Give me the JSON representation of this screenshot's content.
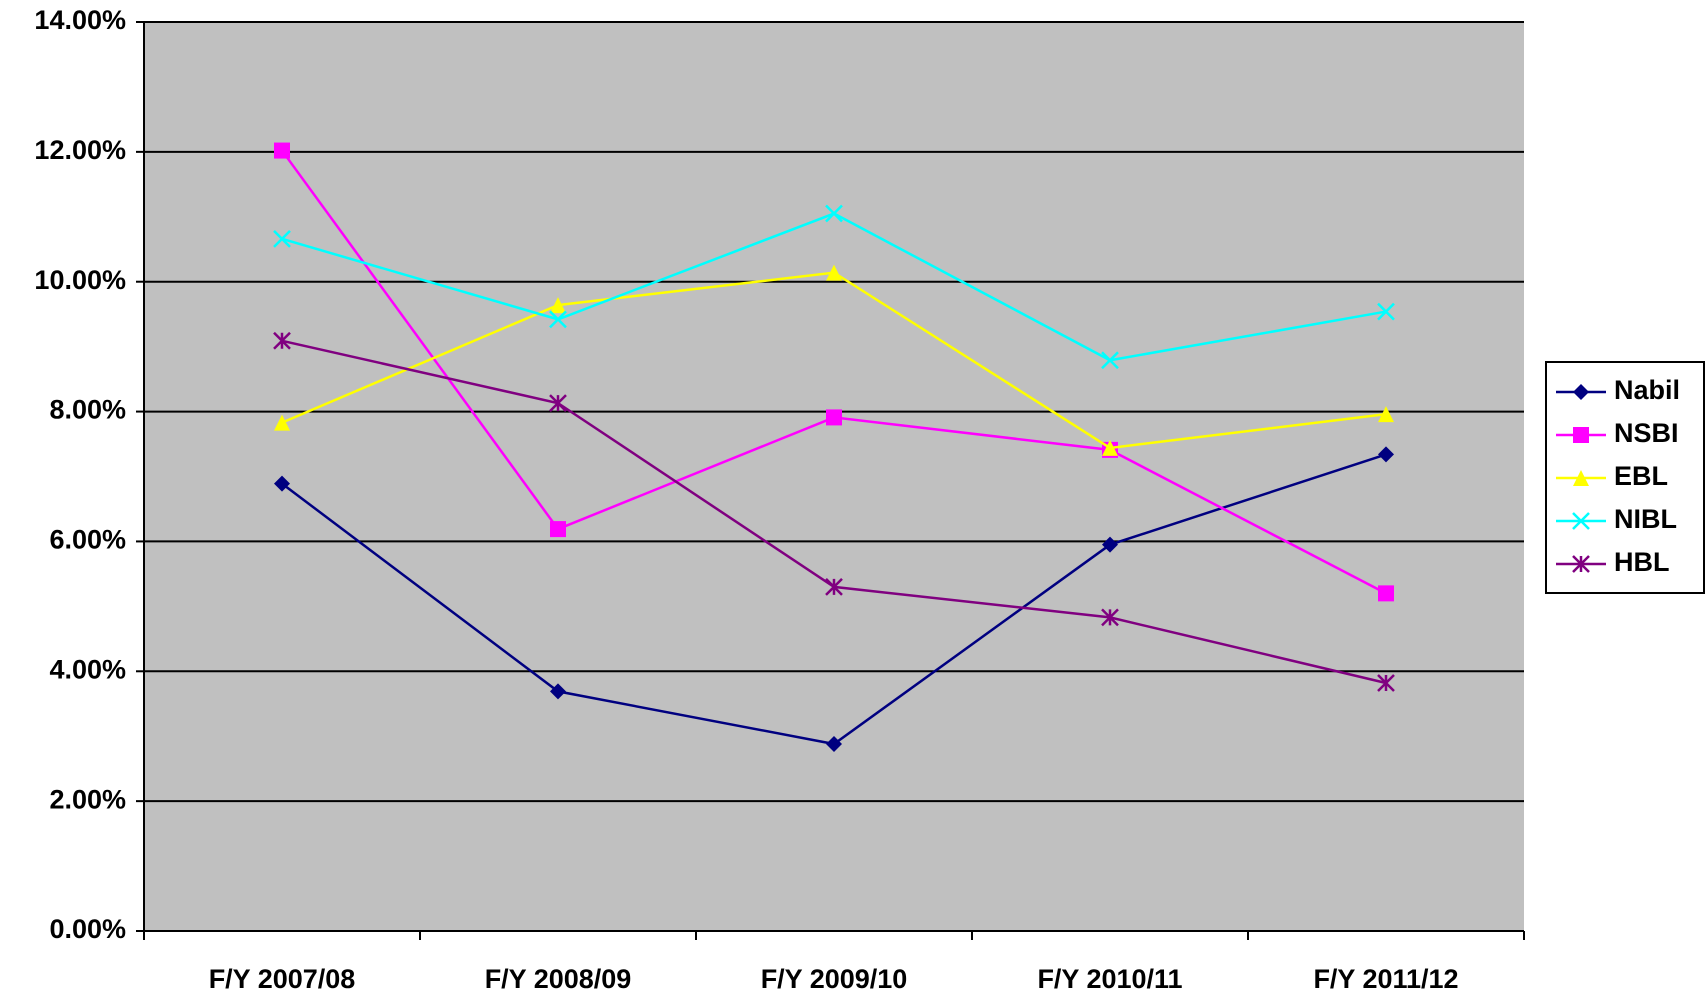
{
  "chart_data": {
    "type": "line",
    "categories": [
      "F/Y 2007/08",
      "F/Y 2008/09",
      "F/Y 2009/10",
      "F/Y 2010/11",
      "F/Y 2011/12"
    ],
    "series": [
      {
        "name": "Nabil",
        "color": "#000080",
        "marker": "diamond",
        "values": [
          6.89,
          3.69,
          2.88,
          5.95,
          7.34
        ]
      },
      {
        "name": "NSBI",
        "color": "#FF00FF",
        "marker": "square",
        "values": [
          12.02,
          6.19,
          7.91,
          7.41,
          5.2
        ]
      },
      {
        "name": "EBL",
        "color": "#FFFF00",
        "marker": "triangle",
        "values": [
          7.83,
          9.64,
          10.14,
          7.44,
          7.96
        ]
      },
      {
        "name": "NIBL",
        "color": "#00FFFF",
        "marker": "x",
        "values": [
          10.66,
          9.42,
          11.05,
          8.79,
          9.54
        ]
      },
      {
        "name": "HBL",
        "color": "#800080",
        "marker": "star",
        "values": [
          9.09,
          8.13,
          5.3,
          4.83,
          3.82
        ]
      }
    ],
    "ylim": [
      0,
      14
    ],
    "yticks": [
      {
        "value": 0,
        "label": "0.00%"
      },
      {
        "value": 2,
        "label": "2.00%"
      },
      {
        "value": 4,
        "label": "4.00%"
      },
      {
        "value": 6,
        "label": "6.00%"
      },
      {
        "value": 8,
        "label": "8.00%"
      },
      {
        "value": 10,
        "label": "10.00%"
      },
      {
        "value": 12,
        "label": "12.00%"
      },
      {
        "value": 14,
        "label": "14.00%"
      }
    ],
    "grid": true,
    "legend": "right",
    "background": "#C0C0C0"
  }
}
